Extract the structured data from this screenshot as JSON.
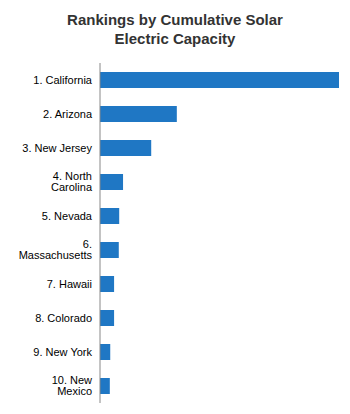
{
  "chart_data": {
    "type": "bar",
    "title": "Rankings by Cumulative Solar Electric Capacity",
    "orientation": "horizontal",
    "categories": [
      "1. California",
      "2. Arizona",
      "3. New Jersey",
      "4. North Carolina",
      "5. Nevada",
      "6. Massachusetts",
      "7. Hawaii",
      "8. Colorado",
      "9. New York",
      "10. New Mexico"
    ],
    "values": [
      5600,
      1800,
      1200,
      540,
      450,
      440,
      330,
      330,
      240,
      230
    ],
    "color": "#1f77c4",
    "xlim": [
      0,
      5600
    ],
    "tick_labels": "y"
  }
}
